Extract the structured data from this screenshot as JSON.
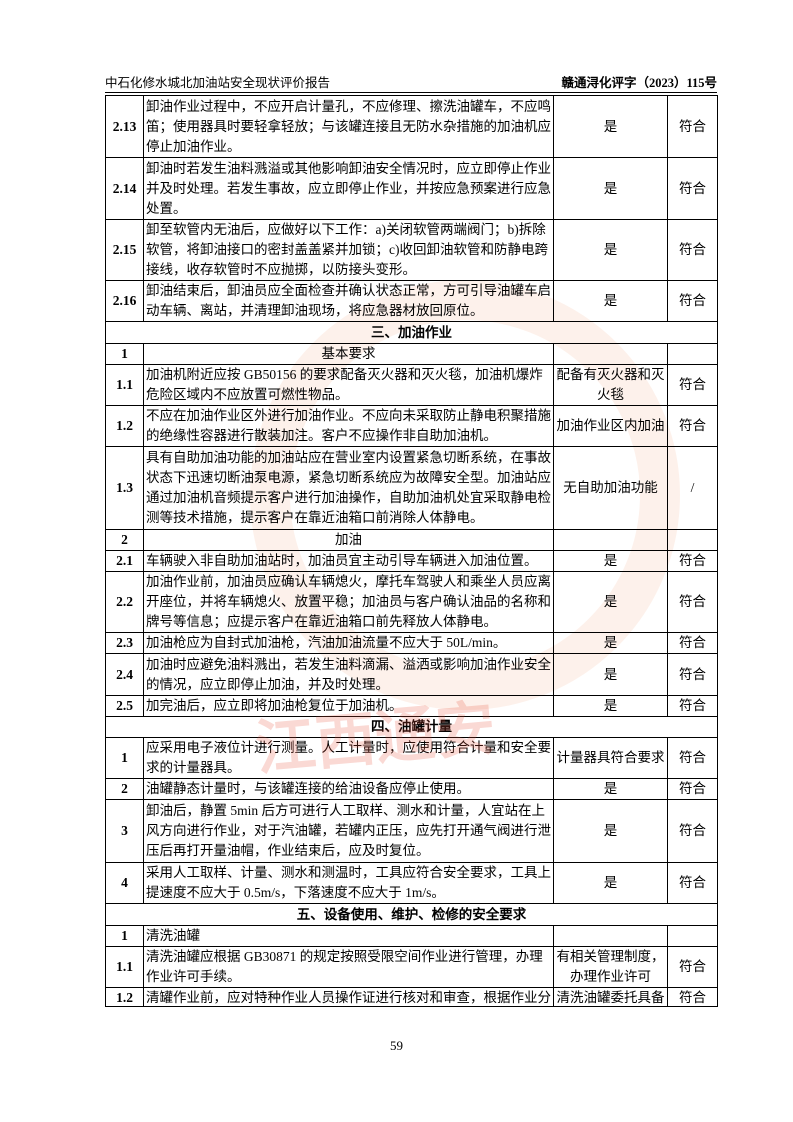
{
  "header": {
    "title": "中石化修水城北加油站安全现状评价报告",
    "doc_no": "赣通浔化评字（2023）115号"
  },
  "watermark": "江西通安",
  "table": {
    "rows": [
      {
        "no": "2.13",
        "item": "卸油作业过程中，不应开启计量孔，不应修理、擦洗油罐车，不应鸣笛；使用器具时要轻拿轻放；与该罐连接且无防水杂措施的加油机应停止加油作业。",
        "result": "是",
        "conclusion": "符合"
      },
      {
        "no": "2.14",
        "item": "卸油时若发生油料溅溢或其他影响卸油安全情况时，应立即停止作业并及时处理。若发生事故，应立即停止作业，并按应急预案进行应急处置。",
        "result": "是",
        "conclusion": "符合"
      },
      {
        "no": "2.15",
        "item": "卸至软管内无油后，应做好以下工作：a)关闭软管两端阀门；b)拆除软管，将卸油接口的密封盖盖紧并加锁；c)收回卸油软管和防静电跨接线，收存软管时不应抛掷，以防接头变形。",
        "result": "是",
        "conclusion": "符合"
      },
      {
        "no": "2.16",
        "item": "卸油结束后，卸油员应全面检查并确认状态正常，方可引导油罐车启动车辆、离站，并清理卸油现场，将应急器材放回原位。",
        "result": "是",
        "conclusion": "符合"
      },
      {
        "section": "三、加油作业"
      },
      {
        "no": "1",
        "item": "基本要求",
        "center": true
      },
      {
        "no": "1.1",
        "item": "加油机附近应按 GB50156 的要求配备灭火器和灭火毯，加油机爆炸危险区域内不应放置可燃性物品。",
        "result": "配备有灭火器和灭火毯",
        "conclusion": "符合"
      },
      {
        "no": "1.2",
        "item": "不应在加油作业区外进行加油作业。不应向未采取防止静电积聚措施的绝缘性容器进行散装加注。客户不应操作非自助加油机。",
        "result": "加油作业区内加油",
        "conclusion": "符合"
      },
      {
        "no": "1.3",
        "item": "具有自助加油功能的加油站应在营业室内设置紧急切断系统，在事故状态下迅速切断油泵电源，紧急切断系统应为故障安全型。加油站应通过加油机音频提示客户进行加油操作，自助加油机处宜采取静电检测等技术措施，提示客户在靠近油箱口前消除人体静电。",
        "result": "无自助加油功能",
        "conclusion": "/"
      },
      {
        "no": "2",
        "item": "加油",
        "center": true
      },
      {
        "no": "2.1",
        "item": "车辆驶入非自助加油站时，加油员宜主动引导车辆进入加油位置。",
        "result": "是",
        "conclusion": "符合"
      },
      {
        "no": "2.2",
        "item": "加油作业前，加油员应确认车辆熄火，摩托车驾驶人和乘坐人员应离开座位，并将车辆熄火、放置平稳；加油员与客户确认油品的名称和牌号等信息；应提示客户在靠近油箱口前先释放人体静电。",
        "result": "是",
        "conclusion": "符合"
      },
      {
        "no": "2.3",
        "item": "加油枪应为自封式加油枪，汽油加油流量不应大于 50L/min。",
        "result": "是",
        "conclusion": "符合"
      },
      {
        "no": "2.4",
        "item": "加油时应避免油料溅出，若发生油料滴漏、溢洒或影响加油作业安全的情况，应立即停止加油，并及时处理。",
        "result": "是",
        "conclusion": "符合"
      },
      {
        "no": "2.5",
        "item": "加完油后，应立即将加油枪复位于加油机。",
        "result": "是",
        "conclusion": "符合"
      },
      {
        "section": "四、油罐计量"
      },
      {
        "no": "1",
        "item": "应采用电子液位计进行测量。人工计量时，应使用符合计量和安全要求的计量器具。",
        "result": "计量器具符合要求",
        "conclusion": "符合"
      },
      {
        "no": "2",
        "item": "油罐静态计量时，与该罐连接的给油设备应停止使用。",
        "result": "是",
        "conclusion": "符合"
      },
      {
        "no": "3",
        "item": "卸油后，静置 5min 后方可进行人工取样、测水和计量，人宜站在上风方向进行作业，对于汽油罐，若罐内正压，应先打开通气阀进行泄压后再打开量油帽，作业结束后，应及时复位。",
        "result": "是",
        "conclusion": "符合"
      },
      {
        "no": "4",
        "item": "采用人工取样、计量、测水和测温时，工具应符合安全要求，工具上提速度不应大于 0.5m/s，下落速度不应大于 1m/s。",
        "result": "是",
        "conclusion": "符合"
      },
      {
        "section": "五、设备使用、维护、检修的安全要求"
      },
      {
        "no": "1",
        "item": "清洗油罐"
      },
      {
        "no": "1.1",
        "item": "清洗油罐应根据 GB30871 的规定按照受限空间作业进行管理，办理作业许可手续。",
        "result": "有相关管理制度，办理作业许可",
        "conclusion": "符合"
      },
      {
        "no": "1.2",
        "item": "清罐作业前，应对特种作业人员操作证进行核对和审查，根据作业分组",
        "result": "清洗油罐委托具备",
        "conclusion": "符合"
      }
    ]
  },
  "footer": {
    "page": "59"
  }
}
